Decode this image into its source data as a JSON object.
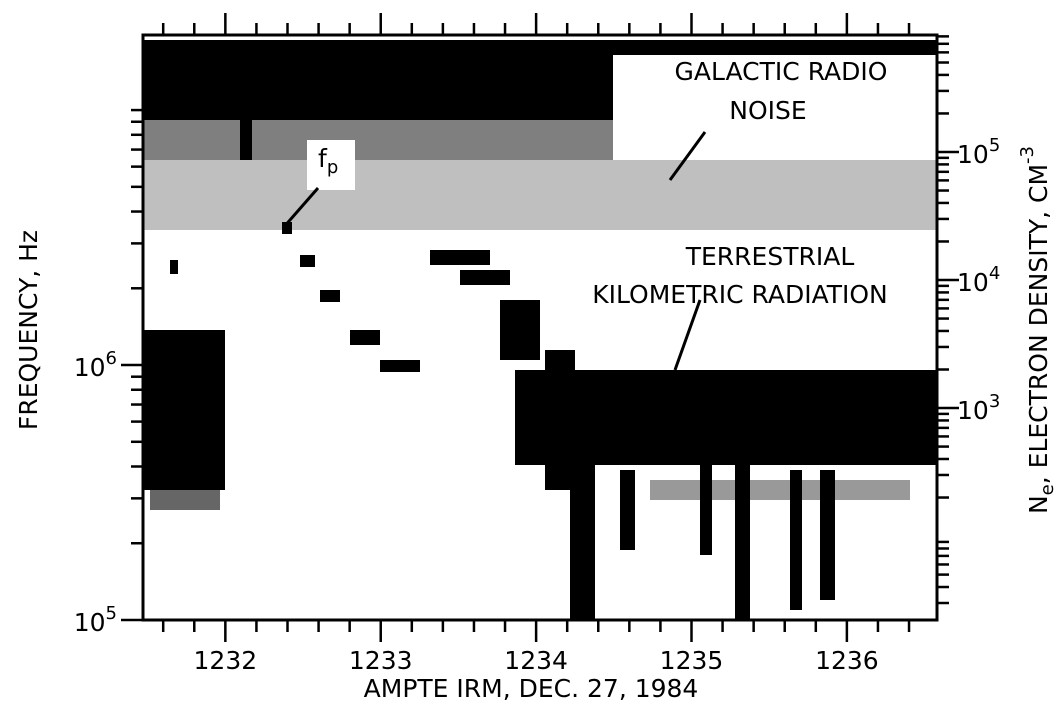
{
  "chart_data": {
    "type": "spectrogram",
    "x_label": "AMPTE IRM, DEC. 27, 1984",
    "y_label": "FREQUENCY, Hz",
    "y2_label": [
      "N",
      "e",
      ", ELECTRON DENSITY, CM",
      "-3"
    ],
    "annotations": [
      "GALACTIC RADIO",
      "NOISE",
      "TERRESTRIAL",
      "KILOMETRIC RADIATION"
    ],
    "fp_label": [
      "f",
      "p"
    ],
    "xlim": [
      1231.47,
      1236.58
    ],
    "xticks": [
      1232,
      1233,
      1234,
      1235,
      1236
    ],
    "xminorticks": [
      1231.6,
      1231.8,
      1232.2,
      1232.4,
      1232.6,
      1232.8,
      1233.2,
      1233.4,
      1233.6,
      1233.8,
      1234.2,
      1234.4,
      1234.6,
      1234.8,
      1235.2,
      1235.4,
      1235.6,
      1235.8,
      1236.2,
      1236.4
    ],
    "ylim": [
      100000,
      19700000
    ],
    "log_y": true,
    "yticks": [
      {
        "value": 100000,
        "label": [
          "10",
          "5"
        ]
      },
      {
        "value": 1000000,
        "label": [
          "10",
          "6"
        ]
      }
    ],
    "yminorticks": [
      200000,
      300000,
      400000,
      500000,
      600000,
      700000,
      800000,
      900000,
      2000000,
      3000000,
      4000000,
      5000000,
      6000000,
      7000000,
      8000000,
      9000000,
      10000000
    ],
    "y2lim": [
      22.1,
      820000
    ],
    "y2ticks": [
      {
        "value": 1000,
        "label": [
          "10",
          "3"
        ]
      },
      {
        "value": 10000,
        "label": [
          "10",
          "4"
        ]
      },
      {
        "value": 100000,
        "label": [
          "10",
          "5"
        ]
      }
    ],
    "y2minorticks": [
      30,
      40,
      50,
      60,
      70,
      80,
      90,
      200,
      300,
      400,
      500,
      600,
      700,
      800,
      900,
      2000,
      3000,
      4000,
      5000,
      6000,
      7000,
      8000,
      9000,
      20000,
      30000,
      40000,
      50000,
      60000,
      70000,
      80000,
      90000,
      200000,
      300000,
      400000,
      500000,
      600000,
      700000,
      800000
    ]
  }
}
